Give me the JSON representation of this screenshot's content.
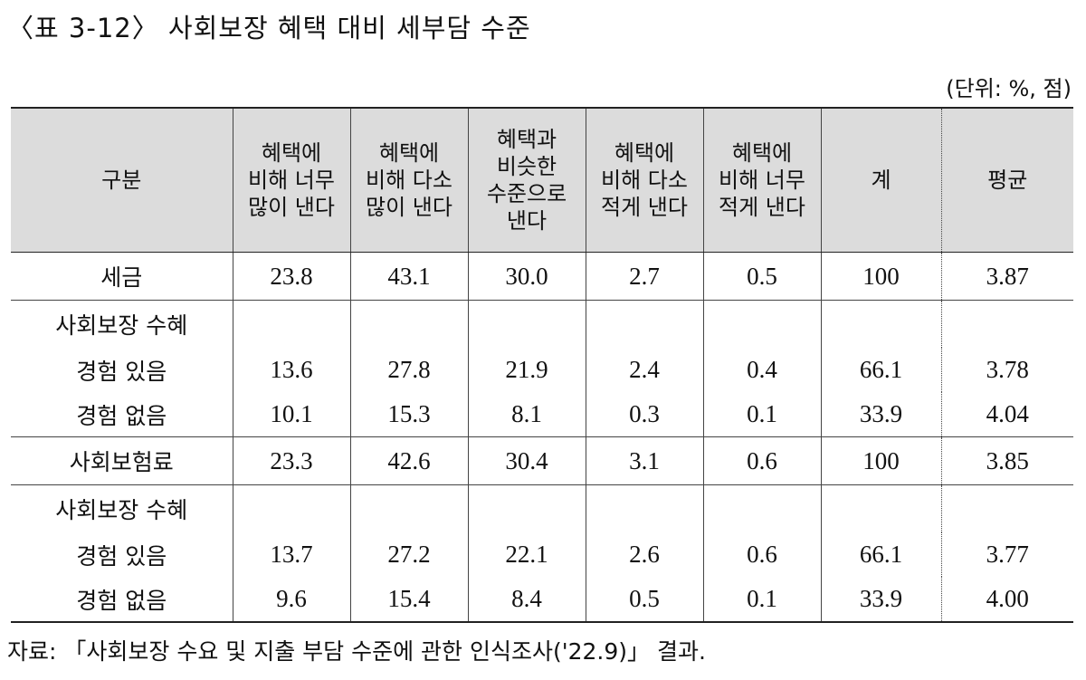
{
  "title": "〈표 3-12〉 사회보장 혜택 대비 세부담 수준",
  "unit": "(단위: %, 점)",
  "table": {
    "header": [
      "구분",
      "혜택에\n비해 너무\n많이 낸다",
      "혜택에\n비해 다소\n많이 낸다",
      "혜택과\n비슷한\n수준으로\n낸다",
      "혜택에\n비해 다소\n적게 낸다",
      "혜택에\n비해 너무\n적게 낸다",
      "계",
      "평균"
    ],
    "sections": [
      [
        [
          "세금",
          "23.8",
          "43.1",
          "30.0",
          "2.7",
          "0.5",
          "100",
          "3.87"
        ]
      ],
      [
        [
          "사회보장 수혜"
        ],
        [
          "경험 있음",
          "13.6",
          "27.8",
          "21.9",
          "2.4",
          "0.4",
          "66.1",
          "3.78"
        ],
        [
          "경험 없음",
          "10.1",
          "15.3",
          "8.1",
          "0.3",
          "0.1",
          "33.9",
          "4.04"
        ]
      ],
      [
        [
          "사회보험료",
          "23.3",
          "42.6",
          "30.4",
          "3.1",
          "0.6",
          "100",
          "3.85"
        ]
      ],
      [
        [
          "사회보장 수혜"
        ],
        [
          "경험 있음",
          "13.7",
          "27.2",
          "22.1",
          "2.6",
          "0.6",
          "66.1",
          "3.77"
        ],
        [
          "경험 없음",
          "9.6",
          "15.4",
          "8.4",
          "0.5",
          "0.1",
          "33.9",
          "4.00"
        ]
      ]
    ]
  },
  "source": "자료: 「사회보장 수요 및 지출 부담 수준에 관한 인식조사('22.9)」 결과."
}
